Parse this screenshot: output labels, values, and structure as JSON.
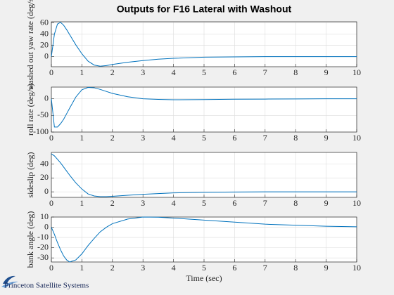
{
  "chart_data": [
    {
      "type": "line",
      "title": "Outputs for F16 Lateral with Washout",
      "ylabel": "washed out yaw rate (deg/s",
      "x": [
        0,
        0.1,
        0.2,
        0.3,
        0.4,
        0.5,
        0.6,
        0.8,
        1,
        1.2,
        1.4,
        1.6,
        1.8,
        2,
        2.5,
        3,
        3.5,
        4,
        5,
        6,
        7,
        8,
        9,
        10
      ],
      "series": [
        {
          "color": "#0072bd",
          "values": [
            0,
            40,
            58,
            61,
            56,
            48,
            39,
            21,
            5,
            -8,
            -15,
            -17,
            -16,
            -14,
            -10,
            -7,
            -4.5,
            -3,
            -1,
            -0.5,
            0,
            0,
            0,
            0
          ]
        }
      ],
      "xlim": [
        0,
        10
      ],
      "xticks": [
        0,
        1,
        2,
        3,
        4,
        5,
        6,
        7,
        8,
        9,
        10
      ],
      "ylim": [
        -18,
        62
      ],
      "yticks": [
        0,
        20,
        40,
        60
      ],
      "grid": true
    },
    {
      "type": "line",
      "ylabel": "roll rate (deg/s)",
      "x": [
        0,
        0.1,
        0.2,
        0.3,
        0.4,
        0.5,
        0.6,
        0.8,
        1,
        1.2,
        1.4,
        1.6,
        1.8,
        2,
        2.5,
        3,
        3.5,
        4,
        5,
        6,
        7,
        8,
        9,
        10
      ],
      "series": [
        {
          "color": "#0072bd",
          "values": [
            0,
            -85,
            -85,
            -75,
            -62,
            -45,
            -28,
            5,
            27,
            34,
            33,
            28,
            22,
            16,
            6,
            0,
            -2,
            -3,
            -2.5,
            -1.5,
            -1,
            -0.5,
            0,
            0
          ]
        }
      ],
      "xlim": [
        0,
        10
      ],
      "xticks": [
        0,
        1,
        2,
        3,
        4,
        5,
        6,
        7,
        8,
        9,
        10
      ],
      "ylim": [
        -100,
        35
      ],
      "yticks": [
        -100,
        -50,
        0
      ],
      "grid": true
    },
    {
      "type": "line",
      "ylabel": "sideslip (deg)",
      "x": [
        0,
        0.1,
        0.2,
        0.3,
        0.4,
        0.5,
        0.6,
        0.8,
        1,
        1.2,
        1.4,
        1.6,
        1.8,
        2,
        2.5,
        3,
        3.5,
        4,
        5,
        6,
        7,
        8,
        9,
        10
      ],
      "series": [
        {
          "color": "#0072bd",
          "values": [
            55,
            52,
            47,
            42,
            36,
            30,
            24,
            13,
            4,
            -3,
            -6,
            -7,
            -7,
            -6.5,
            -5,
            -3.5,
            -2.5,
            -1.5,
            -0.7,
            -0.3,
            0,
            0,
            0,
            0
          ]
        }
      ],
      "xlim": [
        0,
        10
      ],
      "xticks": [
        0,
        1,
        2,
        3,
        4,
        5,
        6,
        7,
        8,
        9,
        10
      ],
      "ylim": [
        -8,
        57
      ],
      "yticks": [
        0,
        20,
        40
      ],
      "grid": true
    },
    {
      "type": "line",
      "ylabel": "bank angle (deg)",
      "xlabel": "Time (sec)",
      "x": [
        0,
        0.1,
        0.2,
        0.3,
        0.4,
        0.5,
        0.6,
        0.8,
        1,
        1.2,
        1.4,
        1.6,
        1.8,
        2,
        2.5,
        3,
        3.5,
        4,
        5,
        6,
        7,
        8,
        9,
        10
      ],
      "series": [
        {
          "color": "#0072bd",
          "values": [
            0,
            -7,
            -15,
            -22,
            -28,
            -32,
            -34,
            -32,
            -26,
            -18,
            -11,
            -4.5,
            0,
            3.5,
            8,
            10,
            9.8,
            9,
            7,
            5,
            3,
            2,
            1,
            0.5
          ]
        }
      ],
      "xlim": [
        0,
        10
      ],
      "xticks": [
        0,
        1,
        2,
        3,
        4,
        5,
        6,
        7,
        8,
        9,
        10
      ],
      "ylim": [
        -34,
        10
      ],
      "yticks": [
        -30,
        -20,
        -10,
        0,
        10
      ],
      "grid": true
    }
  ],
  "footer": "Princeton Satellite Systems"
}
